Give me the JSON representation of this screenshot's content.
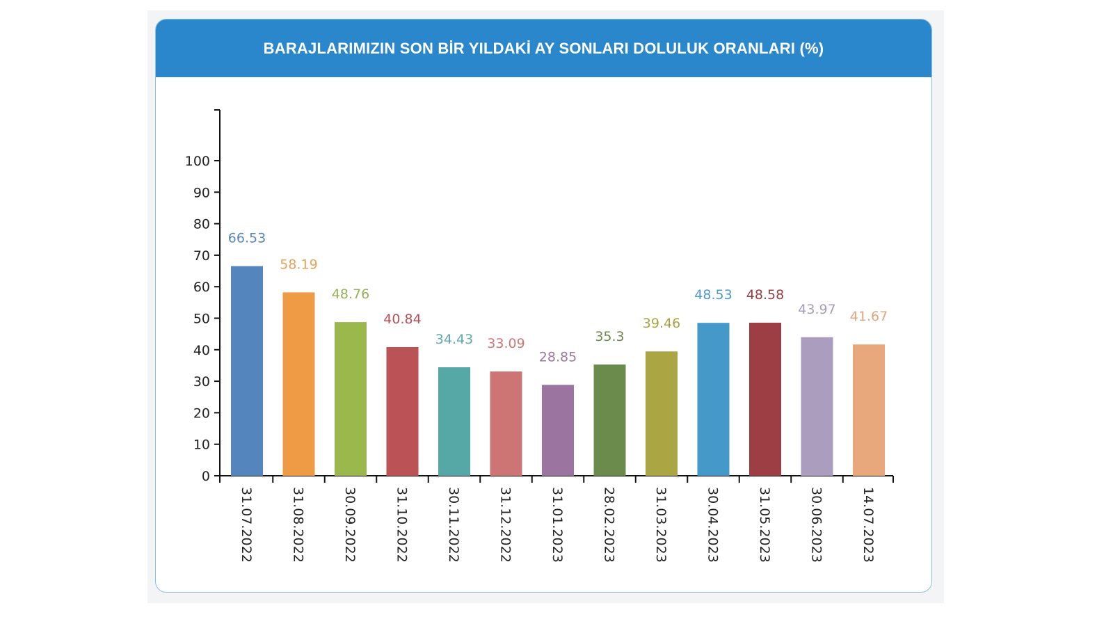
{
  "title": "BARAJLARIMIZIN SON BİR YILDAKİ AY SONLARI DOLULUK ORANLARI (%)",
  "chart_data": {
    "type": "bar",
    "title": "BARAJLARIMIZIN SON BİR YILDAKİ AY SONLARI DOLULUK ORANLARI (%)",
    "xlabel": "",
    "ylabel": "",
    "ylim": [
      0,
      100
    ],
    "yticks": [
      "0",
      "10",
      "20",
      "30",
      "40",
      "50",
      "60",
      "70",
      "80",
      "90",
      "100"
    ],
    "categories": [
      "31.07.2022",
      "31.08.2022",
      "30.09.2022",
      "31.10.2022",
      "30.11.2022",
      "31.12.2022",
      "31.01.2023",
      "28.02.2023",
      "31.03.2023",
      "30.04.2023",
      "31.05.2023",
      "30.06.2023",
      "14.07.2023"
    ],
    "values": [
      66.53,
      58.19,
      48.76,
      40.84,
      34.43,
      33.09,
      28.85,
      35.3,
      39.46,
      48.53,
      48.58,
      43.97,
      41.67
    ],
    "value_labels": [
      "66.53",
      "58.19",
      "48.76",
      "40.84",
      "34.43",
      "33.09",
      "28.85",
      "35.3",
      "39.46",
      "48.53",
      "48.58",
      "43.97",
      "41.67"
    ],
    "colors": [
      "#5585bd",
      "#ef9a45",
      "#9bb84c",
      "#bb5356",
      "#56a8a7",
      "#cd7474",
      "#9c74a0",
      "#6b8b4d",
      "#a9a643",
      "#4599c8",
      "#9c3e43",
      "#ab9dbd",
      "#e9a87b"
    ],
    "label_colors": [
      "#5a86b8",
      "#e6a25a",
      "#95b056",
      "#b24f56",
      "#5ea9a9",
      "#cc7777",
      "#9a7a9e",
      "#70894f",
      "#a9a440",
      "#4f9bc6",
      "#973f45",
      "#a99cba",
      "#e2a57c"
    ],
    "grid": false,
    "legend": "none"
  }
}
